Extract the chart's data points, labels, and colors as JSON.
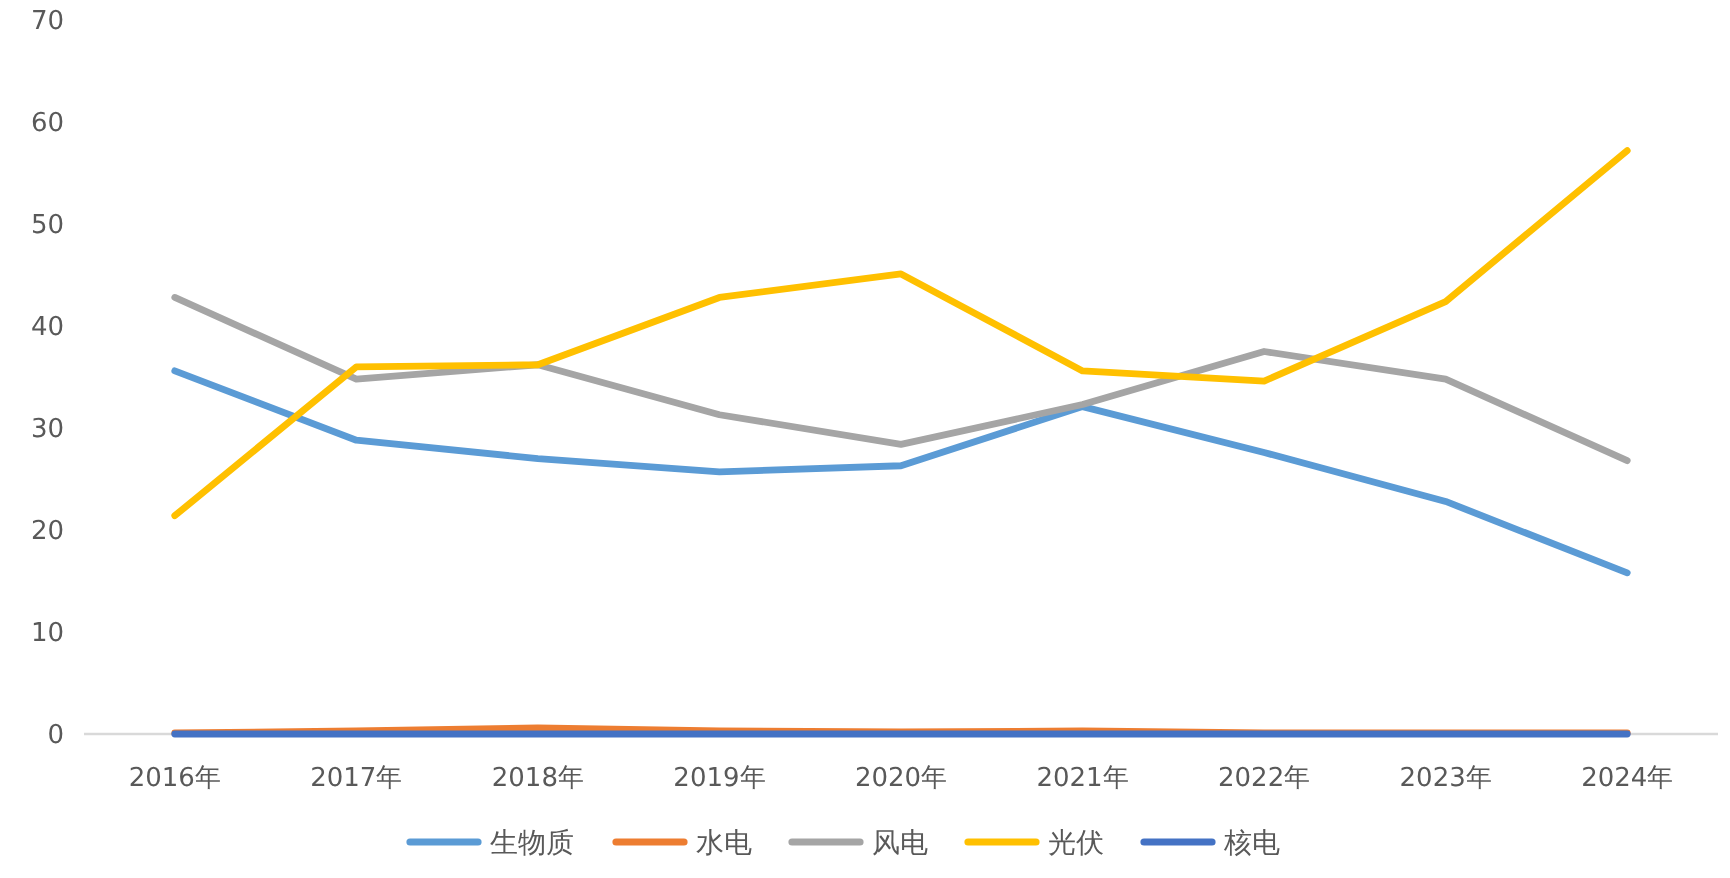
{
  "chart_data": {
    "type": "line",
    "categories": [
      "2016年",
      "2017年",
      "2018年",
      "2019年",
      "2020年",
      "2021年",
      "2022年",
      "2023年",
      "2024年"
    ],
    "series": [
      {
        "name": "生物质",
        "color": "#5b9bd5",
        "values": [
          35.6,
          28.8,
          27.0,
          25.7,
          26.3,
          32.1,
          27.6,
          22.8,
          15.8
        ]
      },
      {
        "name": "水电",
        "color": "#ed7d31",
        "values": [
          0.1,
          0.3,
          0.6,
          0.3,
          0.2,
          0.3,
          0.1,
          0.1,
          0.1
        ]
      },
      {
        "name": "风电",
        "color": "#a5a5a5",
        "values": [
          42.8,
          34.8,
          36.2,
          31.3,
          28.4,
          32.3,
          37.5,
          34.8,
          26.8
        ]
      },
      {
        "name": "光伏",
        "color": "#ffc000",
        "values": [
          21.4,
          36.0,
          36.2,
          42.8,
          45.1,
          35.6,
          34.6,
          42.4,
          57.2
        ]
      },
      {
        "name": "核电",
        "color": "#4472c4",
        "values": [
          0,
          0,
          0,
          0,
          0,
          0,
          0,
          0,
          0
        ]
      }
    ],
    "ylim": [
      0,
      70
    ],
    "yticks": [
      0,
      10,
      20,
      30,
      40,
      50,
      60,
      70
    ],
    "grid": false,
    "legend": "bottom",
    "line_style": "solid"
  }
}
